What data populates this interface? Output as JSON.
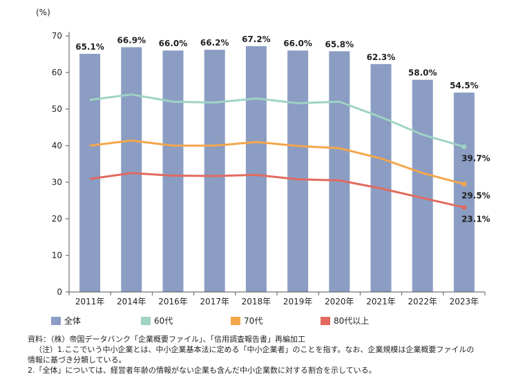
{
  "chart_data": {
    "type": "bar",
    "y_unit_label": "(%)",
    "ylim": [
      0,
      70
    ],
    "yticks": [
      0,
      10,
      20,
      30,
      40,
      50,
      60,
      70
    ],
    "grid": false,
    "categories": [
      "2011年",
      "2014年",
      "2016年",
      "2017年",
      "2018年",
      "2019年",
      "2020年",
      "2021年",
      "2022年",
      "2023年"
    ],
    "series": [
      {
        "name": "全体",
        "kind": "bar",
        "color": "#8b9dc3",
        "values": [
          65.1,
          66.9,
          66.0,
          66.2,
          67.2,
          66.0,
          65.8,
          62.3,
          58.0,
          54.5
        ],
        "labels": [
          "65.1%",
          "66.9%",
          "66.0%",
          "66.2%",
          "67.2%",
          "66.0%",
          "65.8%",
          "62.3%",
          "58.0%",
          "54.5%"
        ]
      },
      {
        "name": "60代",
        "kind": "line",
        "color": "#9fd3c4",
        "values": [
          52.5,
          54.0,
          52.0,
          51.8,
          52.9,
          51.6,
          52.0,
          47.8,
          43.0,
          39.7
        ],
        "end_label": "39.7%"
      },
      {
        "name": "70代",
        "kind": "line",
        "color": "#f4a64b",
        "values": [
          40.0,
          41.4,
          40.0,
          40.0,
          41.0,
          39.9,
          39.3,
          36.5,
          32.5,
          29.5
        ],
        "end_label": "29.5%"
      },
      {
        "name": "80代以上",
        "kind": "line",
        "color": "#e26a5f",
        "values": [
          30.9,
          32.5,
          31.8,
          31.7,
          32.0,
          30.8,
          30.5,
          28.3,
          25.7,
          23.1
        ],
        "end_label": "23.1%"
      }
    ],
    "legend_position": "bottom"
  },
  "notes": {
    "source": "資料：（株）帝国データバンク「企業概要ファイル」、「信用調査報告書」再編加工",
    "note1_line1": "（注）1.ここでいう中小企業とは、中小企業基本法に定める「中小企業者」のことを指す。なお、企業規模は企業概要ファイルの",
    "note1_line2": "情報に基づき分類している。",
    "note2": "2.「全体」については、経営者年齢の情報がない企業も含んだ中小企業数に対する割合を示している。"
  }
}
